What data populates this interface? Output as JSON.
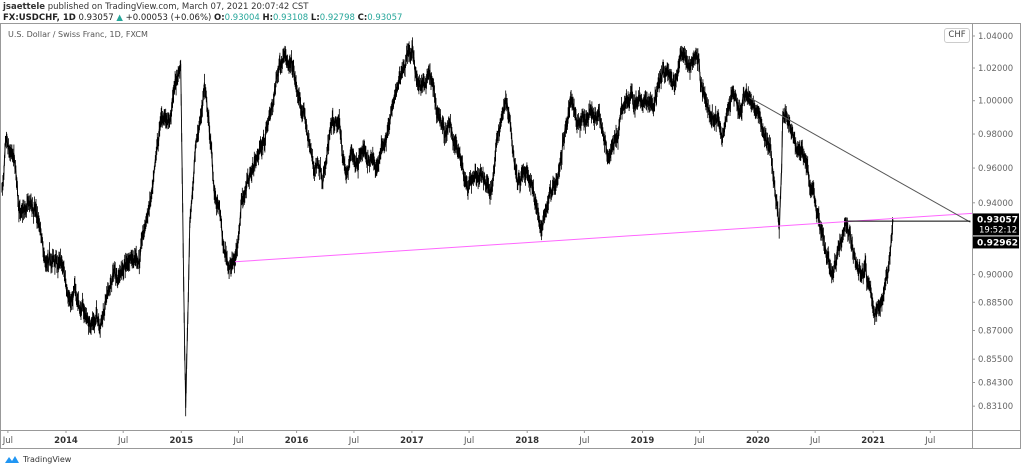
{
  "header": {
    "author": "jsaettele",
    "published": "published on TradingView.com, March 07, 2021 20:07:42 CST",
    "symbol": "FX:USDCHF, 1D",
    "last": "0.93057",
    "change": "+0.00053 (+0.06%)",
    "o_label": "O:",
    "o": "0.93004",
    "h_label": "H:",
    "h": "0.93108",
    "l_label": "L:",
    "l": "0.92798",
    "c_label": "C:",
    "c": "0.93057"
  },
  "legend": "U.S. Dollar / Swiss Franc, 1D, FXCM",
  "currency_button": "CHF",
  "watermark": "TradingView",
  "colors": {
    "up": "#26a69a",
    "price_line": "#000000",
    "support_line": "#ff66ff",
    "trendline": "#555555",
    "label_bg": "#000000"
  },
  "chart_data": {
    "type": "line",
    "symbol": "USDCHF",
    "scale": "log",
    "ylim": [
      0.822,
      1.045
    ],
    "xlim": [
      "2013-06-10",
      "2021-11-10"
    ],
    "y_ticks": [
      "1.04000",
      "1.02000",
      "1.00000",
      "0.98000",
      "0.96000",
      "0.94000",
      "0.90000",
      "0.88500",
      "0.87000",
      "0.85500",
      "0.84300",
      "0.83100"
    ],
    "x_ticks": [
      {
        "date": "2013-07-01",
        "label": "Jul"
      },
      {
        "date": "2014-01-01",
        "label": "2014"
      },
      {
        "date": "2014-07-01",
        "label": "Jul"
      },
      {
        "date": "2015-01-01",
        "label": "2015"
      },
      {
        "date": "2015-07-01",
        "label": "Jul"
      },
      {
        "date": "2016-01-01",
        "label": "2016"
      },
      {
        "date": "2016-07-01",
        "label": "Jul"
      },
      {
        "date": "2017-01-01",
        "label": "2017"
      },
      {
        "date": "2017-07-01",
        "label": "Jul"
      },
      {
        "date": "2018-01-01",
        "label": "2018"
      },
      {
        "date": "2018-07-01",
        "label": "Jul"
      },
      {
        "date": "2019-01-01",
        "label": "2019"
      },
      {
        "date": "2019-07-01",
        "label": "Jul"
      },
      {
        "date": "2020-01-01",
        "label": "2020"
      },
      {
        "date": "2020-07-01",
        "label": "Jul"
      },
      {
        "date": "2021-01-01",
        "label": "2021"
      },
      {
        "date": "2021-07-01",
        "label": "Jul"
      }
    ],
    "price_path": [
      [
        "2013-06-12",
        0.947
      ],
      [
        "2013-07-01",
        0.973
      ],
      [
        "2013-08-05",
        0.936
      ],
      [
        "2013-10-25",
        0.908
      ],
      [
        "2014-01-10",
        0.886
      ],
      [
        "2014-03-15",
        0.873
      ],
      [
        "2014-05-10",
        0.889
      ],
      [
        "2014-07-20",
        0.908
      ],
      [
        "2014-09-25",
        0.941
      ],
      [
        "2014-11-25",
        0.988
      ],
      [
        "2014-12-30",
        1.022
      ],
      [
        "2015-01-15",
        0.831
      ],
      [
        "2015-01-28",
        0.93
      ],
      [
        "2015-02-20",
        0.977
      ],
      [
        "2015-03-15",
        1.01
      ],
      [
        "2015-04-15",
        0.947
      ],
      [
        "2015-05-15",
        0.913
      ],
      [
        "2015-06-20",
        0.907
      ],
      [
        "2015-07-10",
        0.941
      ],
      [
        "2015-08-25",
        0.965
      ],
      [
        "2015-10-12",
        0.994
      ],
      [
        "2015-11-25",
        1.031
      ],
      [
        "2016-01-01",
        1.007
      ],
      [
        "2016-02-25",
        0.959
      ],
      [
        "2016-04-25",
        0.988
      ],
      [
        "2016-06-05",
        0.956
      ],
      [
        "2016-07-25",
        0.971
      ],
      [
        "2016-09-10",
        0.959
      ],
      [
        "2016-11-15",
        1.007
      ],
      [
        "2016-12-20",
        1.031
      ],
      [
        "2017-01-20",
        1.01
      ],
      [
        "2017-03-20",
        0.994
      ],
      [
        "2017-05-25",
        0.971
      ],
      [
        "2017-07-20",
        0.956
      ],
      [
        "2017-09-10",
        0.947
      ],
      [
        "2017-10-25",
        1.001
      ],
      [
        "2017-12-20",
        0.959
      ],
      [
        "2018-02-15",
        0.925
      ],
      [
        "2018-04-10",
        0.956
      ],
      [
        "2018-05-20",
        1.001
      ],
      [
        "2018-07-20",
        0.995
      ],
      [
        "2018-09-15",
        0.965
      ],
      [
        "2018-11-10",
        1.001
      ],
      [
        "2019-01-20",
        0.998
      ],
      [
        "2019-04-05",
        1.01
      ],
      [
        "2019-05-25",
        1.022
      ],
      [
        "2019-07-30",
        0.994
      ],
      [
        "2019-09-10",
        0.977
      ],
      [
        "2019-10-30",
        0.994
      ],
      [
        "2019-12-05",
        1.002
      ],
      [
        "2020-02-10",
        0.972
      ],
      [
        "2020-03-09",
        0.925
      ],
      [
        "2020-03-20",
        0.99
      ],
      [
        "2020-05-10",
        0.971
      ],
      [
        "2020-06-25",
        0.947
      ],
      [
        "2020-08-01",
        0.913
      ],
      [
        "2020-09-01",
        0.905
      ],
      [
        "2020-10-05",
        0.9296
      ],
      [
        "2020-11-10",
        0.905
      ],
      [
        "2021-01-06",
        0.878
      ],
      [
        "2021-02-01",
        0.888
      ],
      [
        "2021-03-05",
        0.93057
      ]
    ],
    "annotations": [
      {
        "type": "trendline",
        "color": "#ff66ff",
        "from": [
          "2015-06-20",
          0.907
        ],
        "to": [
          "2021-11-10",
          0.934
        ]
      },
      {
        "type": "trendline",
        "color": "#555555",
        "from": [
          "2019-12-05",
          1.002
        ],
        "to": [
          "2021-11-05",
          0.929
        ]
      },
      {
        "type": "horizontal_ray",
        "color": "#000000",
        "from": [
          "2020-10-05",
          0.9296
        ],
        "to": [
          "2021-11-05",
          0.9296
        ]
      }
    ],
    "price_labels": [
      {
        "value": "0.93057",
        "countdown": "19:52:12",
        "price": 0.93057
      },
      {
        "value": "0.92962",
        "price": 0.92962
      }
    ]
  }
}
